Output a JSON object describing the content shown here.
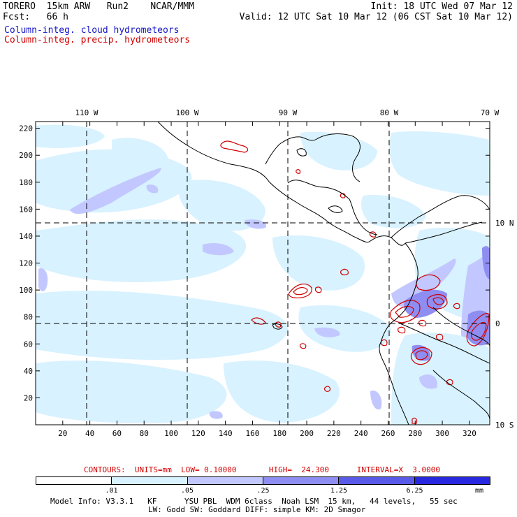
{
  "header": {
    "model_line": "TORERO  15km ARW   Run2    NCAR/MMM",
    "forecast_line": "Fcst:   66 h",
    "init_line": "Init: 18 UTC Wed 07 Mar 12",
    "valid_line": "Valid: 12 UTC Sat 10 Mar 12 (06 CST Sat 10 Mar 12)",
    "field1": "Column-integ. cloud hydrometeors",
    "field2": "Column-integ. precip. hydrometeors",
    "field1_color": "#1515c8",
    "field2_color": "#d00000"
  },
  "map": {
    "top_lon_labels": [
      "110 W",
      "100 W",
      "90 W",
      "80 W",
      "70 W"
    ],
    "right_lat_labels": [
      "10 N",
      "0",
      "10 S"
    ],
    "y_ticks": [
      "20",
      "40",
      "60",
      "80",
      "100",
      "120",
      "140",
      "160",
      "180",
      "200",
      "220"
    ],
    "x_ticks": [
      "20",
      "40",
      "60",
      "80",
      "100",
      "120",
      "140",
      "160",
      "180",
      "200",
      "220",
      "240",
      "260",
      "280",
      "300",
      "320"
    ],
    "y_grid_range": [
      0,
      225
    ],
    "x_grid_range": [
      0,
      335
    ]
  },
  "contours_text": "CONTOURS:  UNITS=mm  LOW= 0.10000       HIGH=  24.300      INTERVAL=X  3.0000",
  "colorbar": {
    "labels": [
      ".01",
      ".05",
      ".25",
      "1.25",
      "6.25"
    ],
    "unit": "mm",
    "colors": [
      "#ffffff",
      "#d8f2ff",
      "#c2c8ff",
      "#8e8ef2",
      "#5a5ae8",
      "#2828e0"
    ]
  },
  "footer": {
    "line1": "Model Info: V3.3.1   KF      YSU PBL  WDM 6class  Noah LSM  15 km,   44 levels,   55 sec",
    "line2": "LW: Godd SW: Goddard DIFF: simple KM: 2D Smagor"
  }
}
